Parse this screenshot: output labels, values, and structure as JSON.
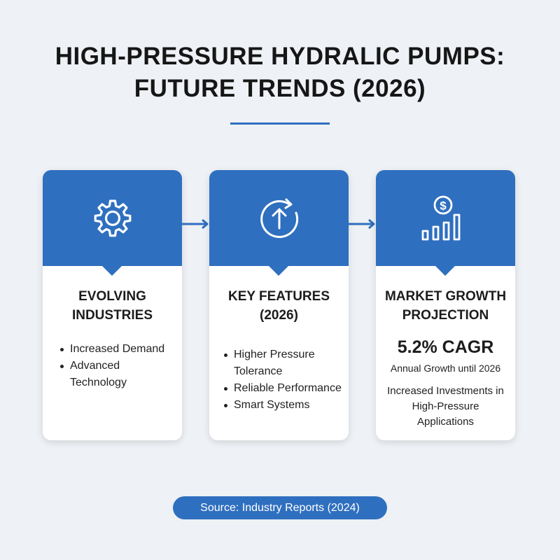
{
  "title": {
    "line1": "HIGH-PRESSURE HYDRALIC PUMPS:",
    "line2": "FUTURE TRENDS (2026)"
  },
  "colors": {
    "accent": "#2f6fbf",
    "background": "#eef1f5",
    "card": "#ffffff"
  },
  "cards": [
    {
      "icon": "gear-icon",
      "title_line1": "EVOLVING",
      "title_line2": "INDUSTRIES",
      "bullets": [
        "Increased Demand",
        "Advanced Technology"
      ]
    },
    {
      "icon": "circular-arrow-up-icon",
      "title_line1": "KEY FEATURES",
      "title_line2": "(2026)",
      "bullets": [
        "Higher Pressure Tolerance",
        "Reliable Performance",
        "Smart Systems"
      ]
    },
    {
      "icon": "dollar-growth-chart-icon",
      "title_line1": "MARKET GROWTH",
      "title_line2": "PROJECTION",
      "stat": "5.2% CAGR",
      "stat_label": "Annual Growth until 2026",
      "note": "Increased Investments in High-Pressure Applications"
    }
  ],
  "source": "Source: Industry Reports (2024)"
}
